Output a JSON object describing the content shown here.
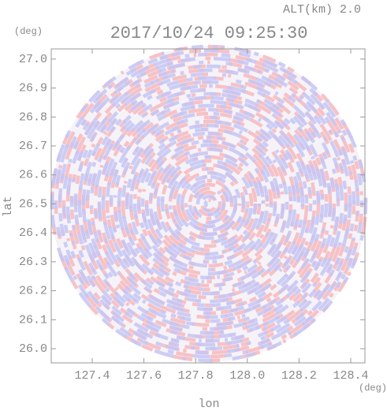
{
  "chart_data": {
    "type": "radar-ppi",
    "title": "2017/10/24 09:25:30",
    "subtitle": "ALT(km) 2.0",
    "x_label": "lon",
    "y_label": "lat",
    "x_unit": "(deg)",
    "y_unit": "(deg)",
    "xlim": [
      127.2415,
      128.455
    ],
    "ylim": [
      25.951,
      27.035
    ],
    "xticks": [
      127.4,
      127.6,
      127.8,
      {
        "value": 128.0,
        "label": "128.0"
      },
      128.2,
      128.4
    ],
    "yticks": [
      {
        "value": 26.0,
        "label": "26.0"
      },
      26.1,
      26.2,
      26.3,
      26.4,
      26.5,
      26.6,
      26.7,
      26.8,
      26.9,
      {
        "value": 27.0,
        "label": "27.0"
      }
    ]
  }
}
